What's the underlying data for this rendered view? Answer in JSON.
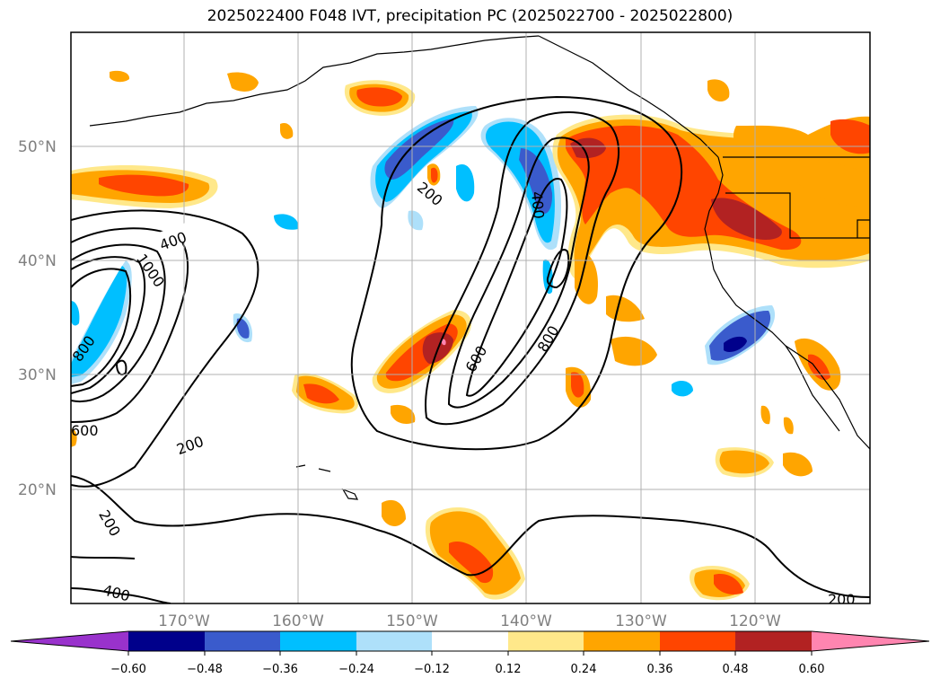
{
  "title": "2025022400 F048 IVT, precipitation PC (2025022700 - 2025022800)",
  "latitude_labels": [
    "50°N",
    "40°N",
    "30°N",
    "20°N"
  ],
  "longitude_labels": [
    "170°W",
    "160°W",
    "150°W",
    "140°W",
    "130°W",
    "120°W"
  ],
  "contour_labels": [
    "400",
    "1000",
    "800",
    "600",
    "200",
    "200",
    "200",
    "400",
    "600",
    "800",
    "400",
    "200",
    "200"
  ],
  "colorbar": {
    "tick_labels": [
      "−0.60",
      "−0.48",
      "−0.36",
      "−0.24",
      "−0.12",
      "0.12",
      "0.24",
      "0.36",
      "0.48",
      "0.60"
    ],
    "colors": [
      "#9932cc",
      "#00008b",
      "#3a5bcc",
      "#00bfff",
      "#aee0fa",
      "#ffffff",
      "#ffe88a",
      "#ffa500",
      "#ff4500",
      "#b22222",
      "#ff85b0"
    ]
  }
}
